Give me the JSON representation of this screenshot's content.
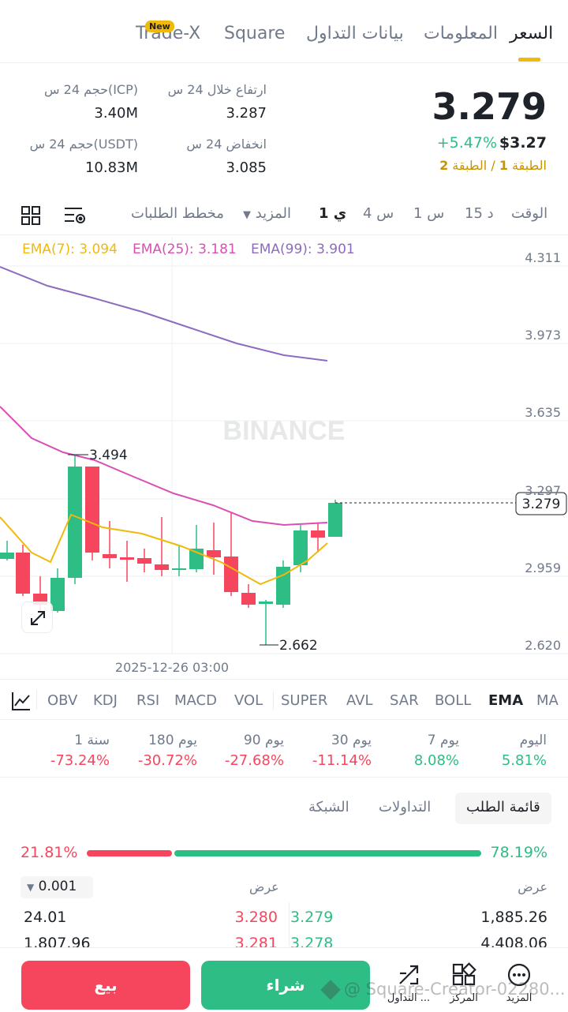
{
  "top_tabs": {
    "trade_x": "Trade-X",
    "new_badge": "New",
    "square": "Square",
    "trading_data": "بيانات التداول",
    "info": "المعلومات",
    "price": "السعر"
  },
  "price_block": {
    "last_price": "3.279",
    "usd_price": "$3.27",
    "change": "+5.47%",
    "tier_prefix": "الطبقة",
    "tier_1": "1",
    "tier_sep": "/ الطبقة",
    "tier_2": "2"
  },
  "stats": {
    "high_label": "ارتفاع خلال 24 س",
    "high_value": "3.287",
    "vol_icp_label": "حجم 24 س(ICP)",
    "vol_icp_value": "3.40M",
    "low_label": "انخفاض 24 س",
    "low_value": "3.085",
    "vol_usdt_label": "حجم 24 س(USDT)",
    "vol_usdt_value": "10.83M"
  },
  "intervals": {
    "time": "الوقت",
    "m15": "15 د",
    "h1": "1 س",
    "h4": "4 س",
    "d1": "1 ي",
    "more": "المزيد",
    "depth": "مخطط الطلبات"
  },
  "chart": {
    "ema7": "EMA(7): 3.094",
    "ema25": "EMA(25): 3.181",
    "ema99": "EMA(99): 3.901",
    "watermark": "BINANCE",
    "y_ticks": [
      "4.311",
      "3.973",
      "3.635",
      "3.297",
      "2.959",
      "2.620"
    ],
    "current_price_label": "3.279",
    "high_marker": "3.494",
    "low_marker": "2.662",
    "x_label": "2025-12-26 03:00",
    "colors": {
      "up": "#2ebd85",
      "down": "#f6465d",
      "ema7": "#f0b90b",
      "ema25": "#d94fb5",
      "ema99": "#8e6bbf"
    }
  },
  "indicators": [
    "MA",
    "EMA",
    "BOLL",
    "SAR",
    "AVL",
    "SUPER",
    "VOL",
    "MACD",
    "RSI",
    "KDJ",
    "OBV"
  ],
  "performance": [
    {
      "label": "اليوم",
      "value": "5.81%",
      "dir": "up"
    },
    {
      "label": "7 يوم",
      "value": "8.08%",
      "dir": "up"
    },
    {
      "label": "30 يوم",
      "value": "-11.14%",
      "dir": "down"
    },
    {
      "label": "90 يوم",
      "value": "-27.68%",
      "dir": "down"
    },
    {
      "label": "180 يوم",
      "value": "-30.72%",
      "dir": "down"
    },
    {
      "label": "1 سنة",
      "value": "-73.24%",
      "dir": "down"
    }
  ],
  "orderbook": {
    "tabs": {
      "book": "قائمة الطلب",
      "trades": "التداولات",
      "grid": "الشبكة"
    },
    "bid_ratio": "78.19%",
    "ask_ratio": "21.81%",
    "bid_header": "عرض",
    "ask_header": "عرض",
    "precision": "0.001",
    "rows": [
      {
        "bid_qty": "1,885.26",
        "bid_price": "3.279",
        "ask_price": "3.280",
        "ask_qty": "24.01"
      },
      {
        "bid_qty": "4,408.06",
        "bid_price": "3.278",
        "ask_price": "3.281",
        "ask_qty": "1,807.96"
      }
    ]
  },
  "bottom": {
    "more": "المزيد",
    "center": "المركز",
    "trade": "التداول ...",
    "buy": "شراء",
    "sell": "بيع",
    "watermark": "@ Square-Creator-02280..."
  }
}
